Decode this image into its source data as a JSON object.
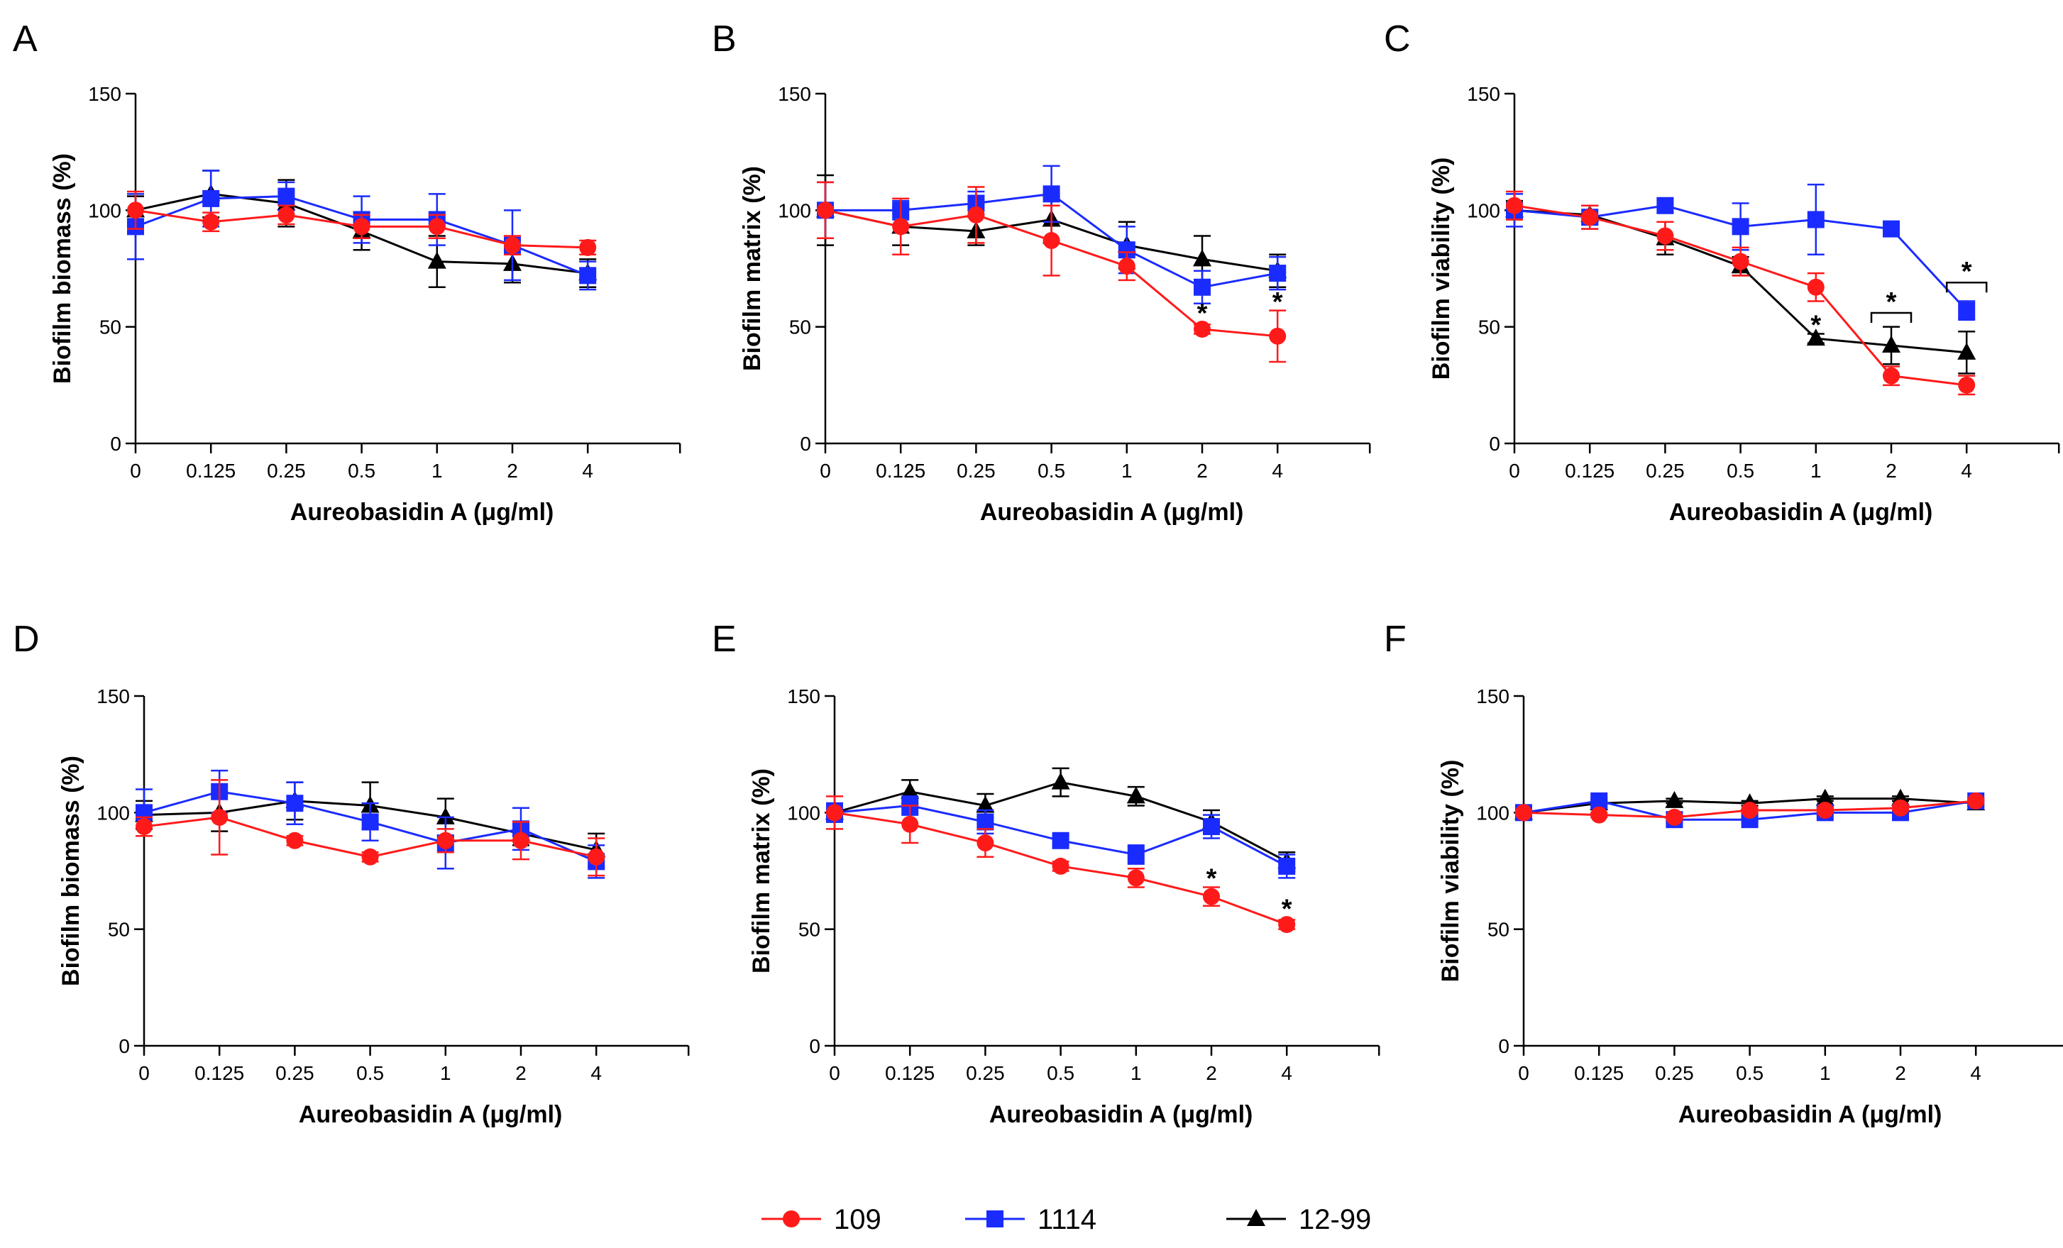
{
  "legend": [
    {
      "name": "109",
      "color": "#ff1a1a",
      "marker": "circle"
    },
    {
      "name": "1114",
      "color": "#1a2bff",
      "marker": "square"
    },
    {
      "name": "12-99",
      "color": "#000000",
      "marker": "triangle"
    }
  ],
  "chart_data": [
    {
      "panel": "A",
      "type": "line",
      "categories": [
        "0",
        "0.125",
        "0.25",
        "0.5",
        "1",
        "2",
        "4"
      ],
      "xlabel": "Aureobasidin A (μg/ml)",
      "ylabel": "Biofilm biomass (%)",
      "ylim": [
        0,
        150
      ],
      "yticks": [
        "0",
        "50",
        "100",
        "150"
      ],
      "series": [
        {
          "name": "109",
          "values": [
            100,
            95,
            98,
            93,
            93,
            85,
            84
          ],
          "errors": [
            8,
            4,
            4,
            5,
            5,
            4,
            3
          ]
        },
        {
          "name": "1114",
          "values": [
            93,
            105,
            106,
            96,
            96,
            85,
            72
          ],
          "errors": [
            14,
            12,
            6,
            10,
            11,
            15,
            6
          ]
        },
        {
          "name": "12-99",
          "values": [
            100,
            107,
            103,
            91,
            78,
            77,
            73
          ],
          "errors": [
            6,
            10,
            10,
            8,
            11,
            8,
            6
          ]
        }
      ],
      "annotations": []
    },
    {
      "panel": "B",
      "type": "line",
      "categories": [
        "0",
        "0.125",
        "0.25",
        "0.5",
        "1",
        "2",
        "4"
      ],
      "xlabel": "Aureobasidin A (μg/ml)",
      "ylabel": "Biofilm matrix (%)",
      "ylim": [
        0,
        150
      ],
      "yticks": [
        "0",
        "50",
        "100",
        "150"
      ],
      "series": [
        {
          "name": "109",
          "values": [
            100,
            93,
            98,
            87,
            76,
            49,
            46
          ],
          "errors": [
            12,
            12,
            12,
            15,
            6,
            2,
            11
          ]
        },
        {
          "name": "1114",
          "values": [
            100,
            100,
            103,
            107,
            83,
            67,
            73
          ],
          "errors": [
            12,
            4,
            5,
            12,
            10,
            7,
            7
          ]
        },
        {
          "name": "12-99",
          "values": [
            100,
            93,
            91,
            96,
            85,
            79,
            74
          ],
          "errors": [
            15,
            8,
            6,
            10,
            10,
            10,
            7
          ]
        }
      ],
      "annotations": [
        {
          "text": "*",
          "x": "2",
          "y": 55
        },
        {
          "text": "*",
          "x": "4",
          "y": 60
        }
      ]
    },
    {
      "panel": "C",
      "type": "line",
      "categories": [
        "0",
        "0.125",
        "0.25",
        "0.5",
        "1",
        "2",
        "4"
      ],
      "xlabel": "Aureobasidin A (μg/ml)",
      "ylabel": "Biofilm viability (%)",
      "ylim": [
        0,
        150
      ],
      "yticks": [
        "0",
        "50",
        "100",
        "150"
      ],
      "series": [
        {
          "name": "109",
          "values": [
            102,
            97,
            89,
            78,
            67,
            29,
            25
          ],
          "errors": [
            6,
            5,
            6,
            6,
            6,
            4,
            4
          ]
        },
        {
          "name": "1114",
          "values": [
            100,
            97,
            102,
            93,
            96,
            92,
            57
          ],
          "errors": [
            7,
            5,
            3,
            10,
            15,
            3,
            4
          ]
        },
        {
          "name": "12-99",
          "values": [
            100,
            98,
            88,
            76,
            45,
            42,
            39
          ],
          "errors": [
            4,
            4,
            7,
            4,
            2,
            8,
            9
          ]
        }
      ],
      "annotations": [
        {
          "text": "*",
          "x": "1",
          "y": 50
        },
        {
          "text": "*",
          "x": "2",
          "y": 60
        },
        {
          "text": "*",
          "x": "4",
          "y": 73
        }
      ],
      "brackets": [
        {
          "x": "2",
          "y": 56
        },
        {
          "x": "4",
          "y": 69
        }
      ]
    },
    {
      "panel": "D",
      "type": "line",
      "categories": [
        "0",
        "0.125",
        "0.25",
        "0.5",
        "1",
        "2",
        "4"
      ],
      "xlabel": "Aureobasidin A (μg/ml)",
      "ylabel": "Biofilm biomass (%)",
      "ylim": [
        0,
        150
      ],
      "yticks": [
        "0",
        "50",
        "100",
        "150"
      ],
      "series": [
        {
          "name": "109",
          "values": [
            94,
            98,
            88,
            81,
            88,
            88,
            81
          ],
          "errors": [
            4,
            16,
            2,
            2,
            5,
            8,
            8
          ]
        },
        {
          "name": "1114",
          "values": [
            100,
            109,
            104,
            96,
            87,
            93,
            79
          ],
          "errors": [
            10,
            9,
            9,
            8,
            11,
            9,
            7
          ]
        },
        {
          "name": "12-99",
          "values": [
            99,
            100,
            105,
            103,
            98,
            91,
            84
          ],
          "errors": [
            6,
            8,
            8,
            10,
            8,
            5,
            7
          ]
        }
      ],
      "annotations": []
    },
    {
      "panel": "E",
      "type": "line",
      "categories": [
        "0",
        "0.125",
        "0.25",
        "0.5",
        "1",
        "2",
        "4"
      ],
      "xlabel": "Aureobasidin A (μg/ml)",
      "ylabel": "Biofilm matrix (%)",
      "ylim": [
        0,
        150
      ],
      "yticks": [
        "0",
        "50",
        "100",
        "150"
      ],
      "series": [
        {
          "name": "109",
          "values": [
            100,
            95,
            87,
            77,
            72,
            64,
            52
          ],
          "errors": [
            7,
            8,
            6,
            2,
            4,
            4,
            2
          ]
        },
        {
          "name": "1114",
          "values": [
            100,
            103,
            96,
            88,
            82,
            94,
            77
          ],
          "errors": [
            4,
            4,
            5,
            2,
            4,
            5,
            5
          ]
        },
        {
          "name": "12-99",
          "values": [
            100,
            109,
            103,
            113,
            107,
            96,
            79
          ],
          "errors": [
            4,
            5,
            5,
            6,
            4,
            5,
            4
          ]
        }
      ],
      "annotations": [
        {
          "text": "*",
          "x": "2",
          "y": 71
        },
        {
          "text": "*",
          "x": "4",
          "y": 58
        }
      ]
    },
    {
      "panel": "F",
      "type": "line",
      "categories": [
        "0",
        "0.125",
        "0.25",
        "0.5",
        "1",
        "2",
        "4"
      ],
      "xlabel": "Aureobasidin A (μg/ml)",
      "ylabel": "Biofilm viability (%)",
      "ylim": [
        0,
        150
      ],
      "yticks": [
        "0",
        "50",
        "100",
        "150"
      ],
      "series": [
        {
          "name": "109",
          "values": [
            100,
            99,
            98,
            101,
            101,
            102,
            105
          ],
          "errors": [
            1,
            1,
            1,
            1,
            1,
            1,
            1
          ]
        },
        {
          "name": "1114",
          "values": [
            100,
            105,
            97,
            97,
            100,
            100,
            105
          ],
          "errors": [
            1,
            1,
            1,
            1,
            1,
            1,
            1
          ]
        },
        {
          "name": "12-99",
          "values": [
            100,
            104,
            105,
            104,
            106,
            106,
            104
          ],
          "errors": [
            1,
            1,
            1,
            1,
            1,
            1,
            1
          ]
        }
      ],
      "annotations": []
    }
  ]
}
